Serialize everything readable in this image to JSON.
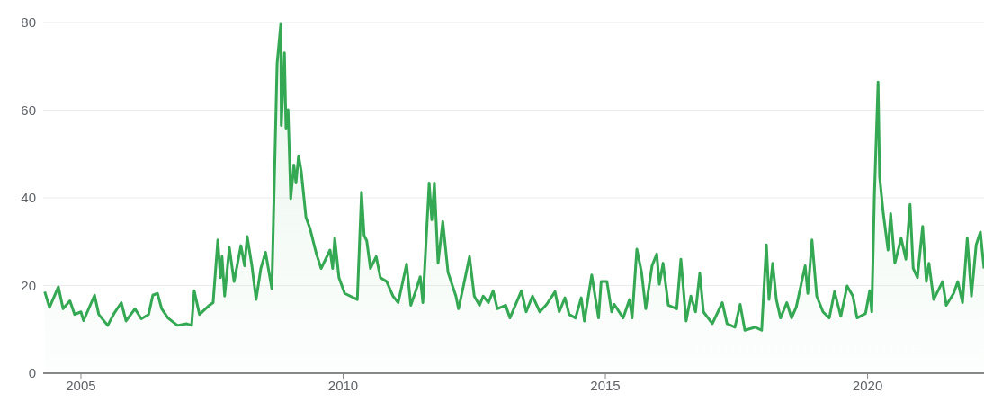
{
  "chart_data": {
    "type": "area",
    "xlim": [
      2004.28,
      2022.22
    ],
    "xticks": [
      2005,
      2010,
      2015,
      2020
    ],
    "ylim": [
      0,
      80
    ],
    "yticks": [
      0,
      20,
      40,
      60,
      80
    ],
    "grid": "y",
    "legend": false,
    "x": [
      2004.31,
      2004.4,
      2004.57,
      2004.66,
      2004.79,
      2004.88,
      2005.0,
      2005.05,
      2005.26,
      2005.34,
      2005.51,
      2005.63,
      2005.77,
      2005.86,
      2006.03,
      2006.15,
      2006.29,
      2006.37,
      2006.46,
      2006.54,
      2006.66,
      2006.84,
      2007.01,
      2007.11,
      2007.16,
      2007.26,
      2007.45,
      2007.52,
      2007.61,
      2007.66,
      2007.69,
      2007.74,
      2007.83,
      2007.92,
      2008.05,
      2008.12,
      2008.17,
      2008.26,
      2008.34,
      2008.43,
      2008.52,
      2008.64,
      2008.74,
      2008.81,
      2008.82,
      2008.88,
      2008.91,
      2008.95,
      2009.0,
      2009.06,
      2009.1,
      2009.15,
      2009.2,
      2009.29,
      2009.37,
      2009.49,
      2009.58,
      2009.75,
      2009.8,
      2009.84,
      2009.92,
      2010.03,
      2010.27,
      2010.35,
      2010.4,
      2010.45,
      2010.52,
      2010.63,
      2010.71,
      2010.83,
      2010.95,
      2011.05,
      2011.21,
      2011.29,
      2011.38,
      2011.47,
      2011.52,
      2011.64,
      2011.69,
      2011.74,
      2011.81,
      2011.9,
      2012.0,
      2012.15,
      2012.2,
      2012.29,
      2012.41,
      2012.5,
      2012.6,
      2012.67,
      2012.77,
      2012.86,
      2012.94,
      2013.1,
      2013.18,
      2013.4,
      2013.49,
      2013.61,
      2013.75,
      2013.88,
      2014.04,
      2014.12,
      2014.23,
      2014.31,
      2014.43,
      2014.54,
      2014.6,
      2014.74,
      2014.87,
      2014.92,
      2015.03,
      2015.12,
      2015.17,
      2015.34,
      2015.46,
      2015.51,
      2015.6,
      2015.69,
      2015.77,
      2015.89,
      2015.98,
      2016.03,
      2016.1,
      2016.2,
      2016.36,
      2016.44,
      2016.54,
      2016.63,
      2016.72,
      2016.8,
      2016.87,
      2017.04,
      2017.23,
      2017.32,
      2017.47,
      2017.57,
      2017.66,
      2017.86,
      2017.98,
      2018.07,
      2018.12,
      2018.19,
      2018.26,
      2018.34,
      2018.46,
      2018.55,
      2018.64,
      2018.76,
      2018.81,
      2018.86,
      2018.94,
      2019.03,
      2019.15,
      2019.27,
      2019.37,
      2019.49,
      2019.61,
      2019.72,
      2019.8,
      2019.96,
      2020.04,
      2020.08,
      2020.13,
      2020.2,
      2020.23,
      2020.3,
      2020.39,
      2020.44,
      2020.52,
      2020.64,
      2020.73,
      2020.81,
      2020.87,
      2020.95,
      2021.05,
      2021.12,
      2021.17,
      2021.26,
      2021.43,
      2021.5,
      2021.64,
      2021.72,
      2021.81,
      2021.9,
      2021.98,
      2022.07,
      2022.15,
      2022.22
    ],
    "series": [
      {
        "color": "#34a853",
        "values": [
          18.6,
          15,
          19.7,
          14.7,
          16.5,
          13.4,
          14,
          12,
          17.8,
          13.4,
          10.9,
          13.6,
          16.1,
          11.9,
          14.7,
          12.4,
          13.4,
          17.8,
          18.2,
          14.7,
          12.6,
          10.9,
          11.3,
          10.9,
          18.8,
          13.4,
          15.5,
          16.1,
          30.4,
          21.8,
          26.6,
          17.6,
          28.7,
          20.9,
          29.1,
          24.5,
          31.2,
          24.5,
          16.8,
          23.9,
          27.6,
          19.3,
          70.6,
          79.6,
          56.5,
          73.1,
          55.9,
          60.1,
          39.8,
          47.5,
          43.4,
          49.6,
          46.1,
          35.6,
          32.9,
          27.2,
          23.9,
          28.1,
          23.9,
          30.8,
          21.8,
          18.2,
          16.8,
          41.3,
          31.4,
          30.2,
          23.9,
          26.6,
          21.8,
          20.9,
          17.6,
          16.1,
          24.9,
          15.5,
          18.6,
          22,
          16.1,
          43.4,
          35,
          43.4,
          25.1,
          34.6,
          23,
          17.6,
          14.7,
          19.7,
          26.6,
          17.6,
          15.5,
          17.6,
          16.1,
          18.8,
          14.7,
          15.5,
          12.6,
          18.8,
          14,
          17.6,
          14,
          15.7,
          18.6,
          14,
          17.2,
          13.4,
          12.6,
          17.2,
          11.9,
          22.4,
          12.6,
          20.9,
          20.9,
          14,
          15.7,
          12.6,
          16.8,
          12.6,
          28.3,
          23,
          14.7,
          24.5,
          27.2,
          20.3,
          25.1,
          15.5,
          14.7,
          26,
          11.9,
          17.6,
          14,
          22.8,
          14,
          11.3,
          16.1,
          11.3,
          10.5,
          15.7,
          9.8,
          10.5,
          9.8,
          29.3,
          16.8,
          25.1,
          16.8,
          12.6,
          16.1,
          12.6,
          15.1,
          21.8,
          24.5,
          18.2,
          30.4,
          17.6,
          14,
          12.6,
          18.6,
          13,
          19.9,
          17.6,
          12.6,
          13.6,
          18.8,
          14,
          40.6,
          66.4,
          44.8,
          36.4,
          28.1,
          36.4,
          25.1,
          30.8,
          26,
          38.5,
          23.9,
          21.8,
          33.5,
          20.9,
          25.1,
          16.8,
          20.9,
          15.5,
          18.2,
          20.9,
          16.1,
          30.8,
          17.6,
          29.3,
          32.2,
          23.9
        ]
      }
    ]
  }
}
